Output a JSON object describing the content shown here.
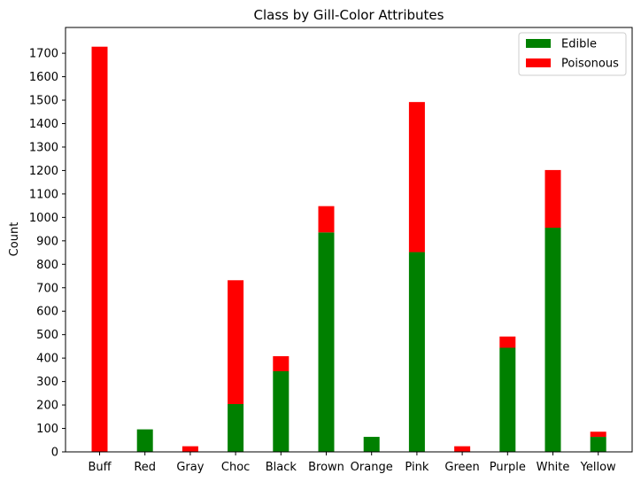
{
  "chart_data": {
    "type": "bar",
    "stacked": true,
    "title": "Class by Gill-Color Attributes",
    "xlabel": "",
    "ylabel": "Count",
    "categories": [
      "Buff",
      "Red",
      "Gray",
      "Choc",
      "Black",
      "Brown",
      "Orange",
      "Pink",
      "Green",
      "Purple",
      "White",
      "Yellow"
    ],
    "series": [
      {
        "name": "Edible",
        "color": "#008000",
        "values": [
          0,
          96,
          0,
          204,
          344,
          936,
          64,
          852,
          0,
          444,
          956,
          64
        ]
      },
      {
        "name": "Poisonous",
        "color": "#ff0000",
        "values": [
          1728,
          0,
          24,
          528,
          64,
          112,
          0,
          640,
          24,
          48,
          246,
          22
        ]
      }
    ],
    "ylim": [
      0,
      1810
    ],
    "yticks": [
      0,
      100,
      200,
      300,
      400,
      500,
      600,
      700,
      800,
      900,
      1000,
      1100,
      1200,
      1300,
      1400,
      1500,
      1600,
      1700
    ],
    "legend": {
      "placement": "top-right"
    },
    "grid": false
  }
}
